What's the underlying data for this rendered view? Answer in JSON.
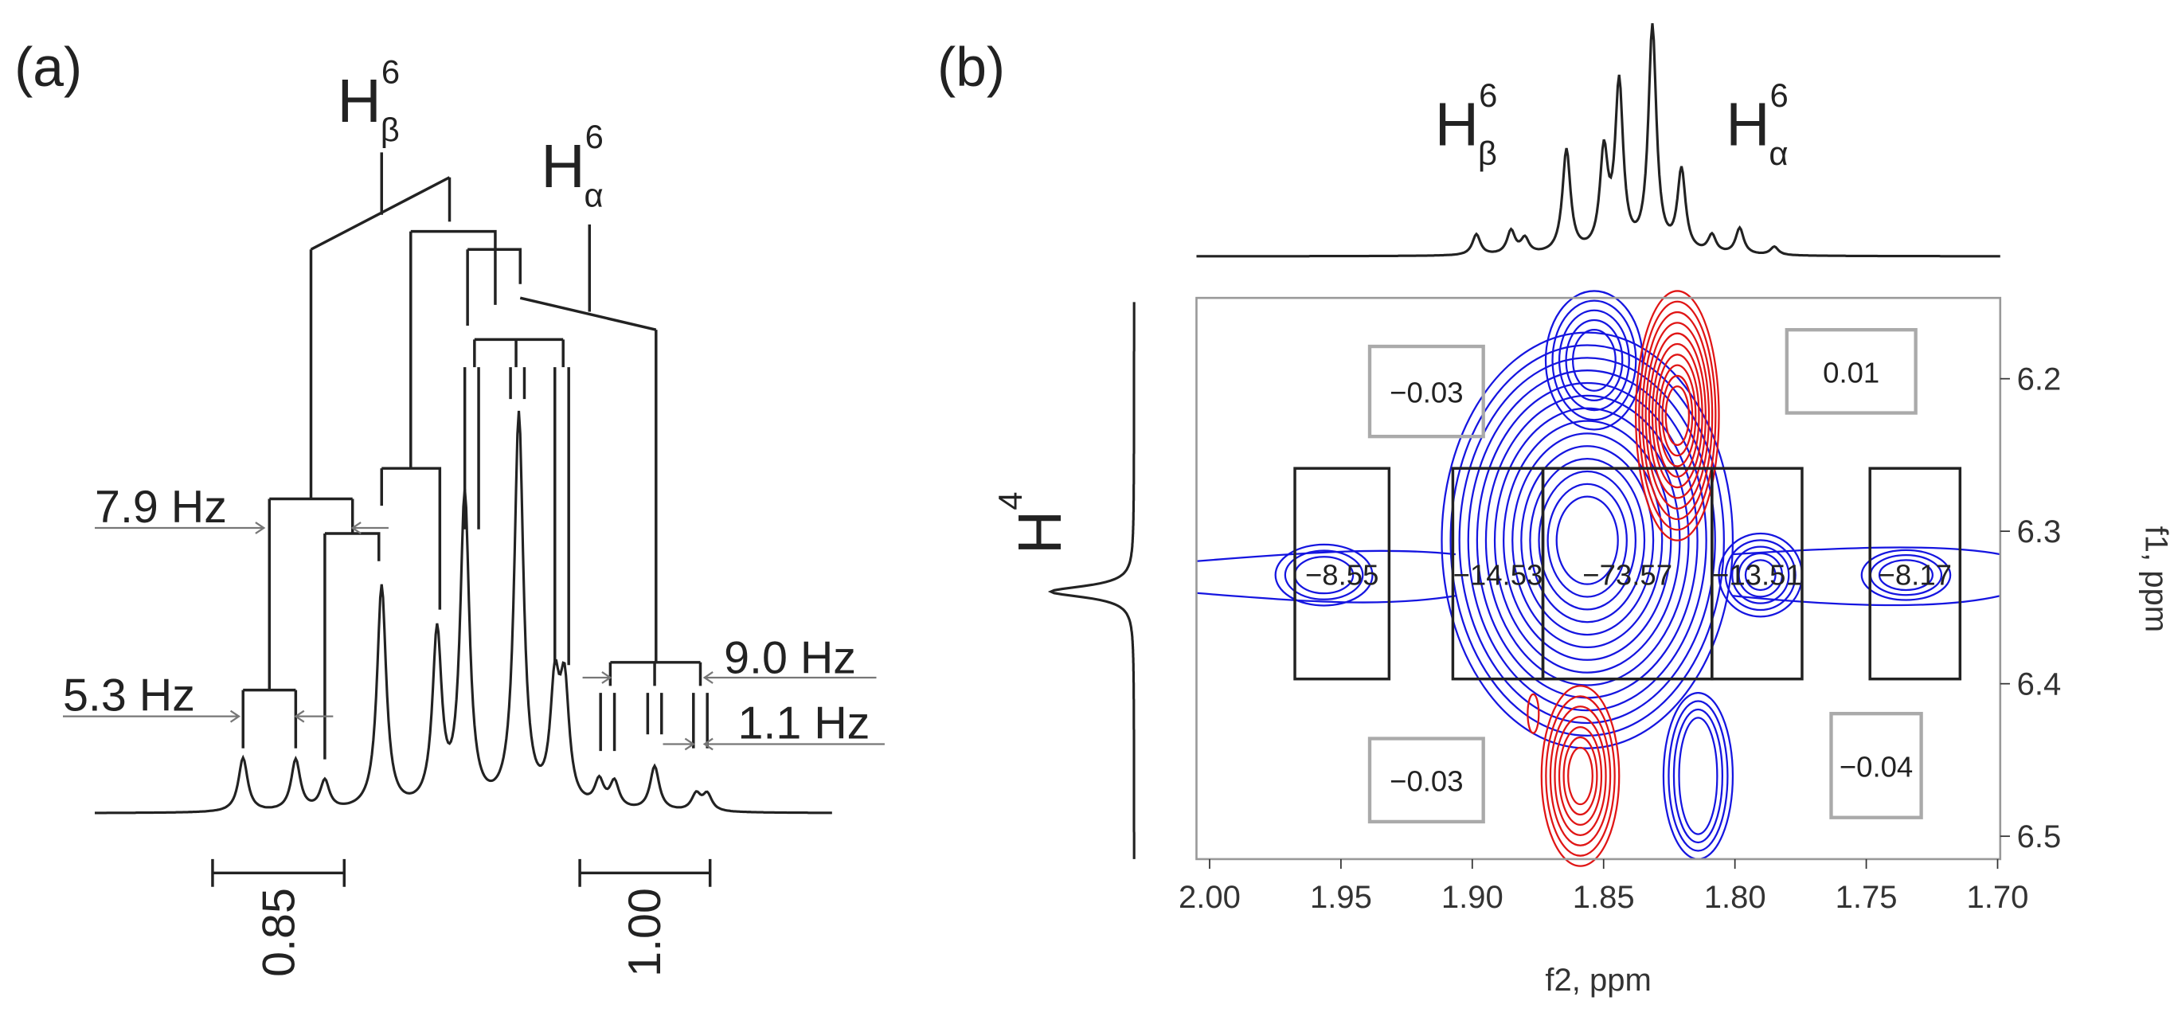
{
  "panel_a": {
    "label": "(a)",
    "peak_labels": [
      {
        "base": "H",
        "sup": "6",
        "sub": "β"
      },
      {
        "base": "H",
        "sup": "6",
        "sub": "α"
      }
    ],
    "couplings": [
      "7.9 Hz",
      "5.3 Hz",
      "9.0 Hz",
      "1.1 Hz"
    ],
    "integrals": [
      "0.85",
      "1.00"
    ]
  },
  "panel_b": {
    "label": "(b)",
    "peak_labels": [
      {
        "base": "H",
        "sup": "6",
        "sub": "β"
      },
      {
        "base": "H",
        "sup": "6",
        "sub": "α"
      },
      {
        "base": "H",
        "sup": "4"
      }
    ],
    "xlabel": "f2, ppm",
    "ylabel": "f1, ppm",
    "xlim": [
      2.005,
      1.699
    ],
    "xticks": [
      {
        "value": 2,
        "label": "2.00"
      },
      1.95,
      {
        "value": 1.9,
        "label": "1.90"
      },
      1.85,
      {
        "value": 1.8,
        "label": "1.80"
      },
      1.75,
      {
        "value": 1.7,
        "label": "1.70"
      }
    ],
    "ylim": [
      6.147,
      6.515
    ],
    "yticks": [
      6.2,
      6.3,
      6.4,
      6.5
    ],
    "box_values": [
      "−8.55",
      "−14.53",
      "−73.57",
      "−13.51",
      "−8.17"
    ],
    "corner_values": [
      "−0.03",
      "0.01",
      "−0.03",
      "−0.04"
    ]
  }
}
